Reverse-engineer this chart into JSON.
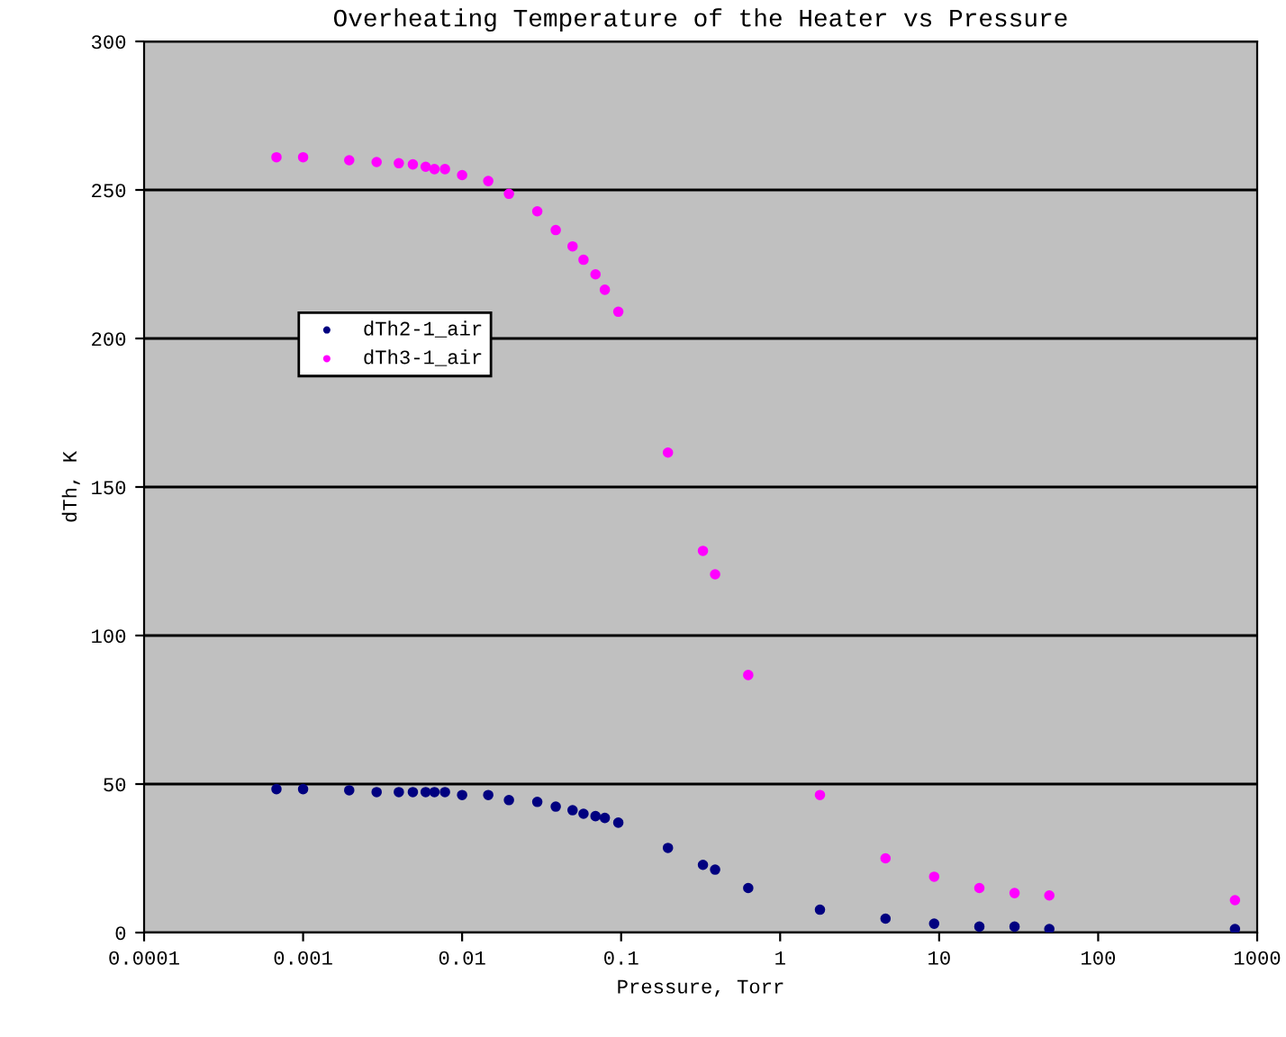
{
  "chart_data": {
    "type": "scatter",
    "title": "Overheating Temperature of the Heater vs Pressure",
    "xlabel": "Pressure, Torr",
    "ylabel": "dTh, K",
    "x": [
      0.00068,
      0.001,
      0.00195,
      0.0029,
      0.004,
      0.0049,
      0.0059,
      0.0067,
      0.0078,
      0.01,
      0.0146,
      0.0197,
      0.0297,
      0.0388,
      0.0495,
      0.058,
      0.069,
      0.079,
      0.096,
      0.197,
      0.327,
      0.39,
      0.63,
      1.78,
      4.6,
      9.3,
      17.9,
      29.8,
      49.3,
      725
    ],
    "series": [
      {
        "name": "dTh2-1_air",
        "color": "#000080",
        "values": [
          48.3,
          48.3,
          47.9,
          47.3,
          47.3,
          47.3,
          47.3,
          47.3,
          47.3,
          46.3,
          46.3,
          44.6,
          44,
          42.4,
          41.2,
          40,
          39.2,
          38.6,
          37,
          28.5,
          22.8,
          21.2,
          15,
          7.7,
          4.7,
          3,
          2,
          2,
          1.2,
          1.2
        ]
      },
      {
        "name": "dTh3-1_air",
        "color": "#ff00ff",
        "values": [
          261,
          261,
          260,
          259.4,
          259,
          258.6,
          257.8,
          257,
          257,
          255,
          253,
          248.7,
          242.8,
          236.5,
          231,
          226.5,
          221.6,
          216.4,
          209,
          161.6,
          128.5,
          120.6,
          86.7,
          46.3,
          25,
          18.8,
          15,
          13.3,
          12.5,
          10.9
        ]
      }
    ],
    "log": "x",
    "xlim": [
      0.0001,
      1000
    ],
    "xticks": [
      0.0001,
      0.001,
      0.01,
      0.1,
      1,
      10,
      100,
      1000
    ],
    "ylim": [
      0,
      300
    ],
    "yticks": [
      0,
      50,
      100,
      150,
      200,
      250,
      300
    ],
    "grid": "y",
    "legend": "left",
    "marker": "circle"
  }
}
